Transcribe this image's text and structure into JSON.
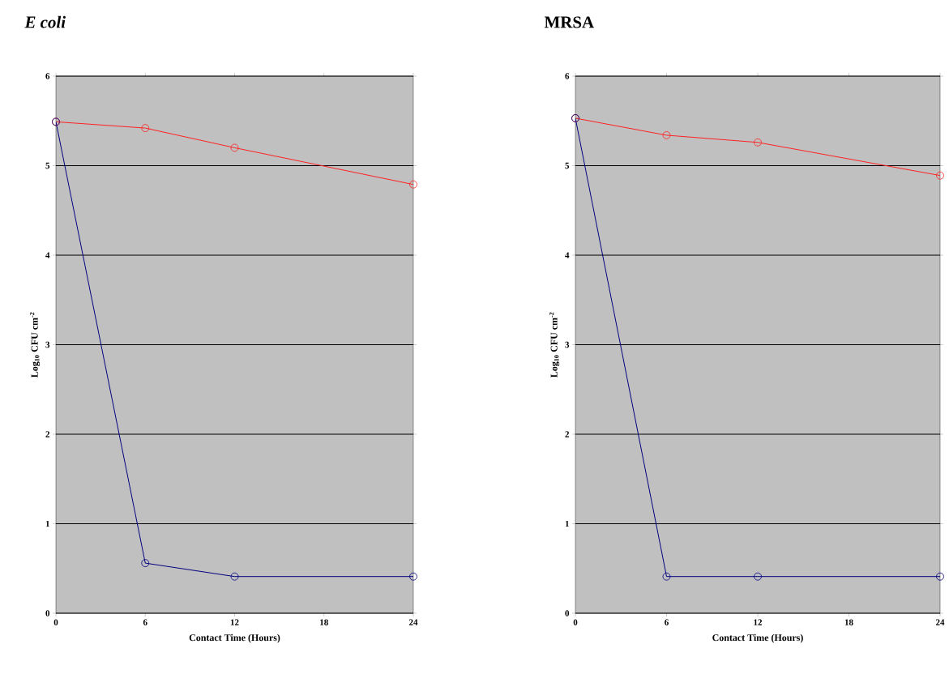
{
  "chart_data": [
    {
      "type": "line",
      "title": "*E coli*",
      "xlabel": "Contact Time (Hours)",
      "ylabel": "Log$_{10}$ CFU cm$^{-2}$",
      "x": [
        0,
        6,
        12,
        24
      ],
      "xlim": [
        0,
        24
      ],
      "xticks": [
        0,
        6,
        12,
        18,
        24
      ],
      "ylim": [
        0,
        6
      ],
      "yticks": [
        0,
        1,
        2,
        3,
        4,
        5,
        6
      ],
      "grid": "y",
      "legend": false,
      "marker": "circle",
      "line_style": "solid",
      "series": [
        {
          "color": "#ff2020",
          "values": [
            5.49,
            5.42,
            5.2,
            4.79
          ]
        },
        {
          "color": "#000080",
          "values": [
            5.49,
            0.56,
            0.41,
            0.41
          ]
        }
      ]
    },
    {
      "type": "line",
      "title": "MRSA",
      "xlabel": "Contact Time (Hours)",
      "ylabel": "Log$_{10}$ CFU cm$^{-2}$",
      "x": [
        0,
        6,
        12,
        24
      ],
      "xlim": [
        0,
        24
      ],
      "xticks": [
        0,
        6,
        12,
        18,
        24
      ],
      "ylim": [
        0,
        6
      ],
      "yticks": [
        0,
        1,
        2,
        3,
        4,
        5,
        6
      ],
      "grid": "y",
      "legend": false,
      "marker": "circle",
      "line_style": "solid",
      "series": [
        {
          "color": "#ff2020",
          "values": [
            5.53,
            5.34,
            5.26,
            4.89
          ]
        },
        {
          "color": "#000080",
          "values": [
            5.53,
            0.41,
            0.41,
            0.41
          ]
        }
      ]
    }
  ]
}
